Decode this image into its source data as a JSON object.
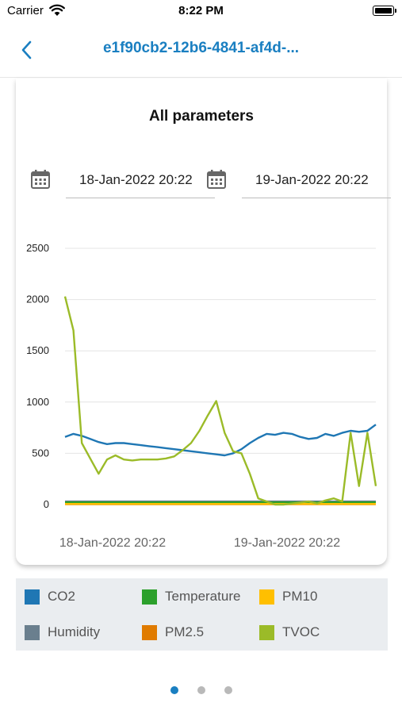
{
  "status_bar": {
    "carrier": "Carrier",
    "time": "8:22 PM"
  },
  "nav": {
    "title": "e1f90cb2-12b6-4841-af4d-..."
  },
  "card": {
    "title": "All parameters",
    "date_from": "18-Jan-2022 20:22",
    "date_to": "19-Jan-2022 20:22"
  },
  "colors": {
    "accent": "#1a7fc1",
    "co2": "#1f77b4",
    "temperature": "#2ca02c",
    "pm10": "#ffbf00",
    "humidity": "#6a7f8e",
    "pm25": "#e07b00",
    "tvoc": "#9bbb28"
  },
  "chart_data": {
    "type": "line",
    "x_tick_labels": [
      "18-Jan-2022 20:22",
      "19-Jan-2022 20:22"
    ],
    "y_ticks": [
      0,
      500,
      1000,
      1500,
      2000,
      2500
    ],
    "ylim": [
      0,
      2500
    ],
    "grid": true,
    "series": [
      {
        "name": "CO2",
        "color": "#1f77b4",
        "values": [
          660,
          690,
          670,
          640,
          610,
          590,
          600,
          600,
          590,
          580,
          570,
          560,
          550,
          540,
          530,
          520,
          510,
          500,
          490,
          480,
          500,
          540,
          600,
          650,
          690,
          680,
          700,
          690,
          660,
          640,
          650,
          690,
          670,
          700,
          720,
          710,
          720,
          780
        ]
      },
      {
        "name": "Humidity",
        "color": "#6a7f8e",
        "values": [
          30,
          30,
          30,
          30,
          30,
          30,
          30,
          30,
          30,
          30,
          30,
          30,
          30,
          30,
          30,
          30,
          30,
          30,
          30,
          30,
          30,
          30,
          30,
          30,
          30,
          30,
          30,
          30,
          30,
          30,
          30,
          30,
          30,
          30,
          30,
          30,
          30,
          30
        ]
      },
      {
        "name": "Temperature",
        "color": "#2ca02c",
        "values": [
          22,
          22,
          22,
          22,
          22,
          22,
          22,
          22,
          22,
          22,
          22,
          22,
          22,
          22,
          22,
          22,
          22,
          22,
          22,
          22,
          22,
          22,
          22,
          22,
          22,
          22,
          22,
          22,
          22,
          22,
          22,
          22,
          22,
          22,
          22,
          22,
          22,
          22
        ]
      },
      {
        "name": "PM2.5",
        "color": "#e07b00",
        "values": [
          4,
          4,
          4,
          4,
          4,
          4,
          4,
          4,
          4,
          4,
          4,
          4,
          4,
          4,
          4,
          4,
          4,
          4,
          4,
          4,
          4,
          4,
          4,
          4,
          4,
          4,
          4,
          4,
          4,
          4,
          4,
          4,
          4,
          4,
          4,
          4,
          4,
          4
        ]
      },
      {
        "name": "PM10",
        "color": "#ffbf00",
        "values": [
          6,
          6,
          6,
          6,
          6,
          6,
          6,
          6,
          6,
          6,
          6,
          6,
          6,
          6,
          6,
          6,
          6,
          6,
          6,
          6,
          6,
          6,
          6,
          6,
          6,
          6,
          6,
          6,
          6,
          6,
          6,
          6,
          6,
          6,
          6,
          6,
          6,
          6
        ]
      },
      {
        "name": "TVOC",
        "color": "#9bbb28",
        "values": [
          2030,
          1700,
          600,
          450,
          300,
          440,
          480,
          440,
          430,
          440,
          440,
          440,
          450,
          470,
          530,
          600,
          720,
          870,
          1010,
          700,
          520,
          500,
          300,
          60,
          30,
          0,
          0,
          10,
          20,
          30,
          10,
          40,
          60,
          30,
          700,
          180,
          700,
          180
        ]
      }
    ]
  },
  "legend": [
    {
      "label": "CO2",
      "color": "#1f77b4"
    },
    {
      "label": "Temperature",
      "color": "#2ca02c"
    },
    {
      "label": "PM10",
      "color": "#ffbf00"
    },
    {
      "label": "Humidity",
      "color": "#6a7f8e"
    },
    {
      "label": "PM2.5",
      "color": "#e07b00"
    },
    {
      "label": "TVOC",
      "color": "#9bbb28"
    }
  ],
  "pager": {
    "count": 3,
    "active_index": 0
  }
}
